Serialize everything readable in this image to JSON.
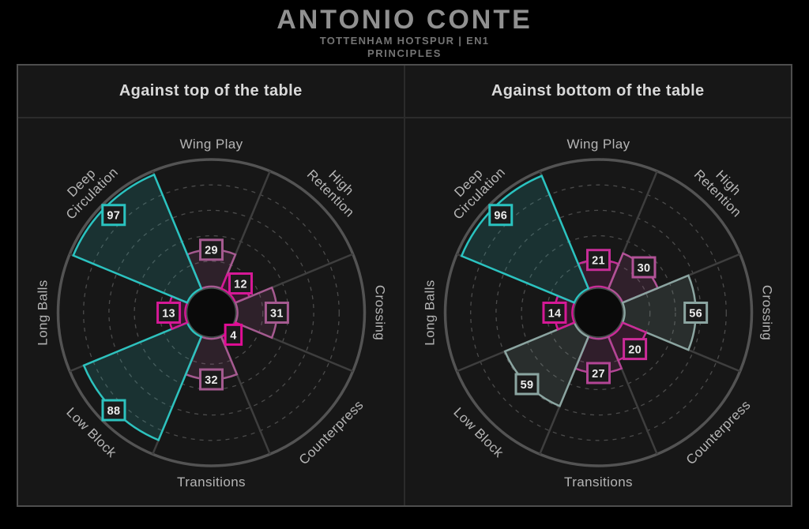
{
  "header": {
    "title": "ANTONIO CONTE",
    "subtitle": "TOTTENHAM HOTSPUR | EN1",
    "tagline": "PRINCIPLES"
  },
  "colors": {
    "background": "#000000",
    "panel_bg": "#171717",
    "panel_border": "#4e4e4e",
    "divider": "#2b2b2b",
    "outer_ring": "#535353",
    "spoke": "#3e3e3e",
    "gridline": "#6e6e6e",
    "hole_fill": "#0a0a0a",
    "hole_ring": "#47504e",
    "badge_bg": "#1b1b1b",
    "badge_text": "#ededed",
    "axis_label": "#b5b5b5",
    "panel_title": "#d9d9d9",
    "main_title": "#909090",
    "subtitle_text": "#747474",
    "teal_accent": "#2ac3c0",
    "magenta_accent": "#d51996",
    "slate_accent": "#8ba5a1",
    "mauve_accent": "#a55a90"
  },
  "chart_data": [
    {
      "type": "bar",
      "layout": "polar-pizza",
      "title": "Against top of the table",
      "categories": [
        "Wing Play",
        "High Retention",
        "Crossing",
        "Counterpress",
        "Transitions",
        "Low Block",
        "Long Balls",
        "Deep Circulation"
      ],
      "category_lines": [
        [
          "Wing Play"
        ],
        [
          "High",
          "Retention"
        ],
        [
          "Crossing"
        ],
        [
          "Counterpress"
        ],
        [
          "Transitions"
        ],
        [
          "Low Block"
        ],
        [
          "Long Balls"
        ],
        [
          "Deep",
          "Circulation"
        ]
      ],
      "values": [
        29,
        12,
        31,
        4,
        32,
        88,
        13,
        97
      ],
      "slice_colors": [
        "#a55a90",
        "#d51996",
        "#a55a90",
        "#e10d95",
        "#a55a90",
        "#2dc2be",
        "#d51996",
        "#2ac3c0"
      ],
      "rlim": [
        0,
        100
      ],
      "gridlines": [
        20,
        40,
        60,
        80
      ],
      "grid_style": "dashed-circles",
      "legend": "none"
    },
    {
      "type": "bar",
      "layout": "polar-pizza",
      "title": "Against bottom of the table",
      "categories": [
        "Wing Play",
        "High Retention",
        "Crossing",
        "Counterpress",
        "Transitions",
        "Low Block",
        "Long Balls",
        "Deep Circulation"
      ],
      "category_lines": [
        [
          "Wing Play"
        ],
        [
          "High",
          "Retention"
        ],
        [
          "Crossing"
        ],
        [
          "Counterpress"
        ],
        [
          "Transitions"
        ],
        [
          "Low Block"
        ],
        [
          "Long Balls"
        ],
        [
          "Deep",
          "Circulation"
        ]
      ],
      "values": [
        21,
        30,
        56,
        20,
        27,
        59,
        14,
        96
      ],
      "slice_colors": [
        "#c62d97",
        "#b25297",
        "#8ba5a1",
        "#cb2b98",
        "#b34595",
        "#8ba5a1",
        "#d51996",
        "#2ac3c0"
      ],
      "rlim": [
        0,
        100
      ],
      "gridlines": [
        20,
        40,
        60,
        80
      ],
      "grid_style": "dashed-circles",
      "legend": "none"
    }
  ]
}
